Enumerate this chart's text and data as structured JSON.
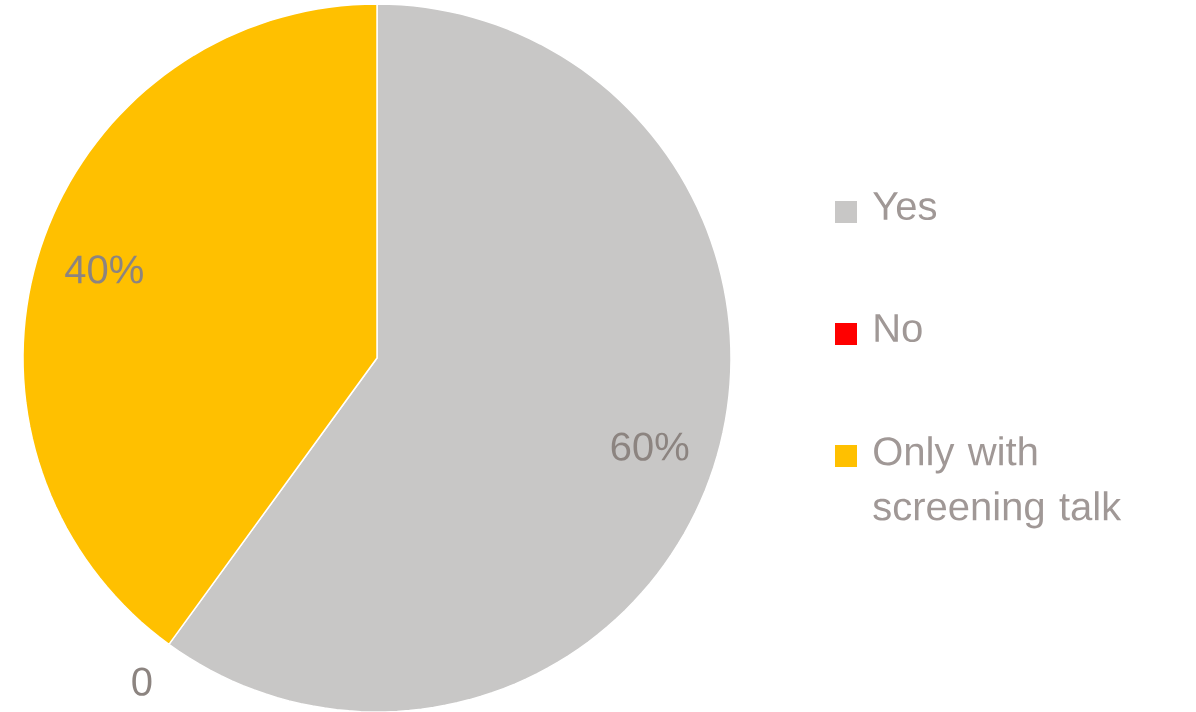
{
  "chart_data": {
    "type": "pie",
    "categories": [
      "Yes",
      "No",
      "Only with screening talk"
    ],
    "values": [
      60,
      0,
      40
    ],
    "colors": [
      "#c8c7c6",
      "#ff0000",
      "#ffc000"
    ],
    "value_labels": [
      "60%",
      "0",
      "40%"
    ],
    "legend": "right"
  }
}
